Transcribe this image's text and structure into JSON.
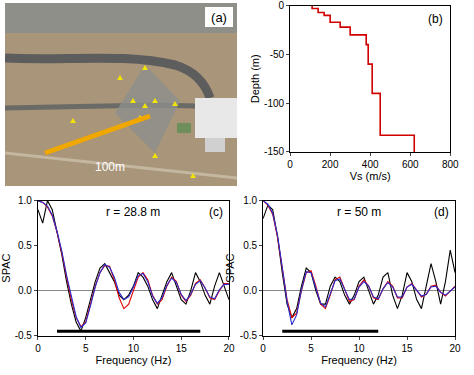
{
  "photo": {
    "label": "(a)",
    "scale_bar": "100m"
  },
  "chart_data": [
    {
      "type": "step",
      "label": "(b)",
      "x_label": "Vs (m/s)",
      "y_label": "Depth (m)",
      "layers": {
        "vs": [
          110,
          140,
          170,
          200,
          250,
          300,
          380,
          390,
          410,
          450,
          620
        ],
        "top_depth": [
          0,
          -3,
          -7,
          -10,
          -17,
          -22,
          -30,
          -40,
          -60,
          -90,
          -133
        ]
      },
      "color": "#d00000",
      "xlim": [
        0,
        800
      ],
      "xticks": [
        0,
        200,
        400,
        600,
        800
      ],
      "ylim": [
        -150,
        0
      ],
      "yticks": [
        -150,
        -100,
        -50,
        0
      ],
      "grid": false
    },
    {
      "type": "line",
      "label": "(c)",
      "annotation": "r = 28.8 m",
      "x_label": "Frequency (Hz)",
      "y_label": "SPAC",
      "x": [
        0,
        0.5,
        1,
        1.5,
        2,
        2.5,
        3,
        3.5,
        4,
        4.5,
        5,
        5.5,
        6,
        6.5,
        7,
        7.5,
        8,
        8.5,
        9,
        9.5,
        10,
        10.5,
        11,
        11.5,
        12,
        12.5,
        13,
        13.5,
        14,
        14.5,
        15,
        15.5,
        16,
        16.5,
        17,
        17.5,
        18,
        18.5,
        19,
        19.5,
        20
      ],
      "series": [
        {
          "color": "#000000",
          "values": [
            0.9,
            0.75,
            1.0,
            0.9,
            0.65,
            0.4,
            0.1,
            -0.15,
            -0.35,
            -0.45,
            -0.3,
            -0.1,
            0.1,
            0.25,
            0.3,
            0.2,
            0.1,
            -0.05,
            -0.1,
            -0.05,
            0.05,
            0.2,
            0.15,
            0.05,
            -0.1,
            -0.2,
            -0.05,
            0.1,
            0.2,
            0.05,
            -0.1,
            -0.15,
            0.0,
            0.2,
            0.1,
            -0.05,
            -0.15,
            0.05,
            0.2,
            0.05,
            -0.1
          ]
        },
        {
          "color": "#e00000",
          "values": [
            1.0,
            0.98,
            0.93,
            0.83,
            0.65,
            0.42,
            0.15,
            -0.1,
            -0.3,
            -0.4,
            -0.35,
            -0.15,
            0.05,
            0.2,
            0.28,
            0.27,
            0.12,
            -0.08,
            -0.2,
            -0.15,
            0.0,
            0.15,
            0.2,
            0.12,
            -0.05,
            -0.15,
            -0.1,
            0.05,
            0.15,
            0.1,
            -0.05,
            -0.12,
            -0.05,
            0.08,
            0.12,
            0.03,
            -0.08,
            -0.1,
            0.0,
            0.08,
            0.08
          ]
        },
        {
          "color": "#2a2ad0",
          "values": [
            1.0,
            0.98,
            0.94,
            0.84,
            0.66,
            0.44,
            0.17,
            -0.08,
            -0.29,
            -0.41,
            -0.36,
            -0.17,
            0.04,
            0.2,
            0.29,
            0.26,
            0.15,
            -0.02,
            -0.1,
            -0.07,
            0.04,
            0.17,
            0.19,
            0.1,
            -0.06,
            -0.14,
            -0.08,
            0.06,
            0.14,
            0.09,
            -0.04,
            -0.11,
            -0.04,
            0.07,
            0.11,
            0.03,
            -0.07,
            -0.09,
            0.01,
            0.07,
            0.07
          ]
        }
      ],
      "band": {
        "x": [
          2,
          17
        ],
        "y": -0.45,
        "color": "#000000"
      },
      "xlim": [
        0,
        20
      ],
      "xticks": [
        0,
        5,
        10,
        15,
        20
      ],
      "ylim": [
        -0.5,
        1
      ],
      "yticks": [
        -0.5,
        {
          "value": 0,
          "label": "0.0"
        },
        0.5,
        {
          "value": 1,
          "label": "1.0"
        }
      ],
      "grid": false
    },
    {
      "type": "line",
      "label": "(d)",
      "annotation": "r = 50 m",
      "x_label": "Frequency (Hz)",
      "y_label": "SPAC",
      "x": [
        0,
        0.5,
        1,
        1.5,
        2,
        2.5,
        3,
        3.5,
        4,
        4.5,
        5,
        5.5,
        6,
        6.5,
        7,
        7.5,
        8,
        8.5,
        9,
        9.5,
        10,
        10.5,
        11,
        11.5,
        12,
        12.5,
        13,
        13.5,
        14,
        14.5,
        15,
        15.5,
        16,
        16.5,
        17,
        17.5,
        18,
        18.5,
        19,
        19.5,
        20
      ],
      "series": [
        {
          "color": "#000000",
          "values": [
            0.8,
            0.95,
            0.9,
            0.6,
            0.2,
            -0.15,
            -0.3,
            -0.2,
            0.05,
            0.25,
            0.2,
            0.0,
            -0.15,
            -0.15,
            0.05,
            0.15,
            0.1,
            -0.05,
            -0.15,
            -0.05,
            0.1,
            0.15,
            0.0,
            -0.15,
            -0.05,
            0.15,
            0.2,
            -0.05,
            -0.2,
            -0.05,
            0.2,
            0.1,
            -0.1,
            -0.2,
            0.05,
            0.3,
            0.1,
            -0.15,
            0.1,
            0.45,
            0.2
          ]
        },
        {
          "color": "#e00000",
          "values": [
            1.0,
            0.95,
            0.85,
            0.6,
            0.25,
            -0.1,
            -0.3,
            -0.25,
            0.0,
            0.2,
            0.22,
            0.05,
            -0.15,
            -0.2,
            -0.05,
            0.12,
            0.15,
            0.02,
            -0.12,
            -0.1,
            0.05,
            0.12,
            0.05,
            -0.08,
            -0.1,
            0.02,
            0.1,
            0.05,
            -0.08,
            -0.08,
            0.04,
            0.08,
            0.0,
            -0.07,
            -0.04,
            0.05,
            0.06,
            -0.02,
            -0.06,
            0.0,
            0.05
          ]
        },
        {
          "color": "#2a2ad0",
          "values": [
            1.0,
            0.96,
            0.86,
            0.62,
            0.26,
            -0.12,
            -0.38,
            -0.27,
            0.01,
            0.21,
            0.2,
            0.03,
            -0.14,
            -0.18,
            -0.04,
            0.11,
            0.13,
            0.02,
            -0.1,
            -0.09,
            0.04,
            0.1,
            0.05,
            -0.07,
            -0.09,
            0.02,
            0.09,
            0.04,
            -0.07,
            -0.07,
            0.04,
            0.07,
            0.0,
            -0.06,
            -0.04,
            0.04,
            0.05,
            -0.02,
            -0.05,
            0.0,
            0.04
          ]
        }
      ],
      "band": {
        "x": [
          2,
          12
        ],
        "y": -0.45,
        "color": "#000000"
      },
      "xlim": [
        0,
        20
      ],
      "xticks": [
        0,
        5,
        10,
        15,
        20
      ],
      "ylim": [
        -0.5,
        1
      ],
      "yticks": [
        -0.5,
        {
          "value": 0,
          "label": "0.0"
        },
        0.5,
        {
          "value": 1,
          "label": "1.0"
        }
      ],
      "grid": false
    }
  ]
}
